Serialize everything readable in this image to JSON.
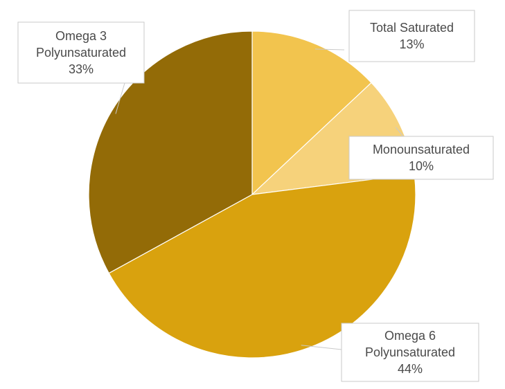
{
  "chart_data": {
    "type": "pie",
    "categories": [
      "Total Saturated",
      "Monounsaturated",
      "Omega 6 Polyunsaturated",
      "Omega 3 Polyunsaturated"
    ],
    "values": [
      13,
      10,
      44,
      33
    ],
    "labels": [
      {
        "lines": [
          "Total Saturated",
          "13%"
        ]
      },
      {
        "lines": [
          "Monounsaturated",
          "10%"
        ]
      },
      {
        "lines": [
          "Omega 6",
          "Polyunsaturated",
          "44%"
        ]
      },
      {
        "lines": [
          "Omega 3",
          "Polyunsaturated",
          "33%"
        ]
      }
    ],
    "colors": [
      "#f2c44e",
      "#f6d27b",
      "#d9a20e",
      "#936b07"
    ],
    "legend": "none"
  }
}
